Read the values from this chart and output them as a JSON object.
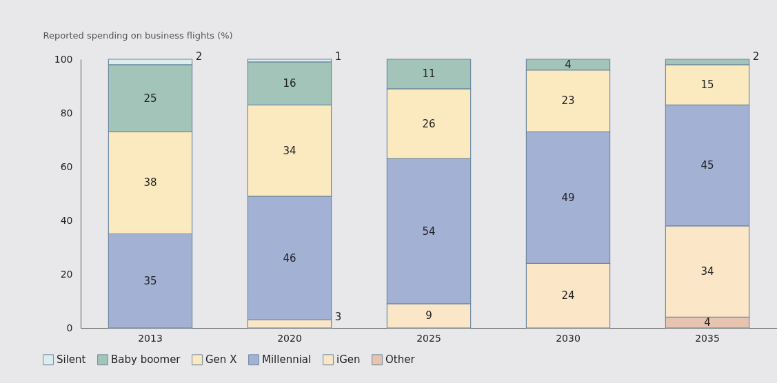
{
  "chart_data": {
    "type": "bar",
    "stacked": true,
    "ylabel": "Reported spending on business flights (%)",
    "categories": [
      "2013",
      "2020",
      "2025",
      "2030",
      "2035"
    ],
    "series": [
      {
        "name": "Other",
        "color": "#e8c3b0",
        "values": [
          0,
          0,
          0,
          0,
          4
        ],
        "value_labels": [
          null,
          null,
          null,
          null,
          "4"
        ]
      },
      {
        "name": "iGen",
        "color": "#fbe6c8",
        "values": [
          0,
          3,
          9,
          24,
          34
        ],
        "value_labels": [
          null,
          "3",
          "9",
          "24",
          "34"
        ]
      },
      {
        "name": "Millennial",
        "color": "#a3b2d4",
        "values": [
          35,
          46,
          54,
          49,
          45
        ],
        "value_labels": [
          "35",
          "46",
          "54",
          "49",
          "45"
        ]
      },
      {
        "name": "Gen X",
        "color": "#fbe9c0",
        "values": [
          38,
          34,
          26,
          23,
          15
        ],
        "value_labels": [
          "38",
          "34",
          "26",
          "23",
          "15"
        ]
      },
      {
        "name": "Baby boomer",
        "color": "#a3c4b8",
        "values": [
          25,
          16,
          11,
          4,
          2
        ],
        "value_labels": [
          "25",
          "16",
          "11",
          "4",
          "2"
        ]
      },
      {
        "name": "Silent",
        "color": "#dcecef",
        "values": [
          2,
          1,
          0,
          0,
          0
        ],
        "value_labels": [
          "2",
          "1",
          null,
          null,
          null
        ]
      }
    ],
    "ylim": [
      0,
      100
    ],
    "yticks": [
      0,
      20,
      40,
      60,
      80,
      100
    ],
    "grid": false,
    "legend": "bottom left"
  }
}
